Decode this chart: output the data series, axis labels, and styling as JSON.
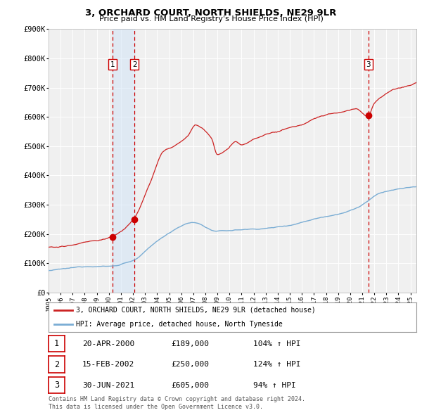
{
  "title": "3, ORCHARD COURT, NORTH SHIELDS, NE29 9LR",
  "subtitle": "Price paid vs. HM Land Registry's House Price Index (HPI)",
  "ylim": [
    0,
    900000
  ],
  "xlim_start": 1995.0,
  "xlim_end": 2025.5,
  "yticks": [
    0,
    100000,
    200000,
    300000,
    400000,
    500000,
    600000,
    700000,
    800000,
    900000
  ],
  "ytick_labels": [
    "£0",
    "£100K",
    "£200K",
    "£300K",
    "£400K",
    "£500K",
    "£600K",
    "£700K",
    "£800K",
    "£900K"
  ],
  "xtick_years": [
    1995,
    1996,
    1997,
    1998,
    1999,
    2000,
    2001,
    2002,
    2003,
    2004,
    2005,
    2006,
    2007,
    2008,
    2009,
    2010,
    2011,
    2012,
    2013,
    2014,
    2015,
    2016,
    2017,
    2018,
    2019,
    2020,
    2021,
    2022,
    2023,
    2024,
    2025
  ],
  "hpi_line_color": "#7aadd4",
  "price_line_color": "#cc2222",
  "dot_color": "#cc0000",
  "vline_color": "#cc0000",
  "shade_color": "#d0e4f7",
  "sale1_date": 2000.3,
  "sale1_price": 189000,
  "sale2_date": 2002.12,
  "sale2_price": 250000,
  "sale3_date": 2021.5,
  "sale3_price": 605000,
  "legend_property": "3, ORCHARD COURT, NORTH SHIELDS, NE29 9LR (detached house)",
  "legend_hpi": "HPI: Average price, detached house, North Tyneside",
  "table_rows": [
    {
      "num": "1",
      "date": "20-APR-2000",
      "price": "£189,000",
      "hpi": "104% ↑ HPI"
    },
    {
      "num": "2",
      "date": "15-FEB-2002",
      "price": "£250,000",
      "hpi": "124% ↑ HPI"
    },
    {
      "num": "3",
      "date": "30-JUN-2021",
      "price": "£605,000",
      "hpi": "94% ↑ HPI"
    }
  ],
  "footnote1": "Contains HM Land Registry data © Crown copyright and database right 2024.",
  "footnote2": "This data is licensed under the Open Government Licence v3.0.",
  "background_color": "#ffffff",
  "plot_bg_color": "#f0f0f0"
}
